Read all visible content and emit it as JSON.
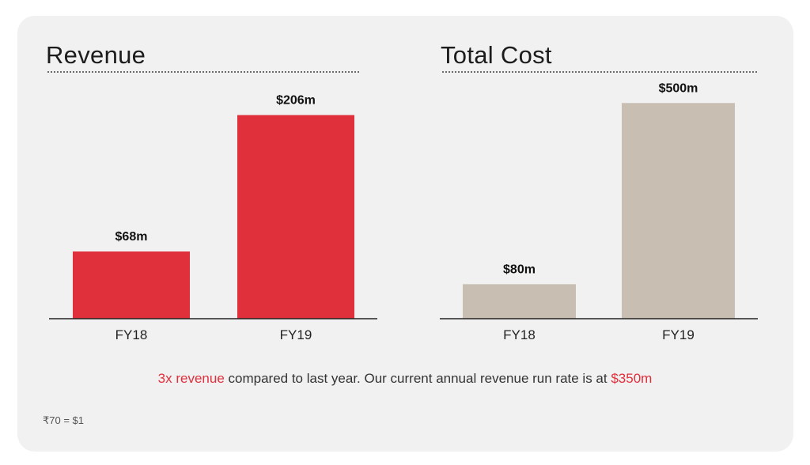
{
  "chart_data": [
    {
      "type": "bar",
      "title": "Revenue",
      "categories": [
        "FY18",
        "FY19"
      ],
      "values": [
        68,
        206
      ],
      "value_labels": [
        "$68m",
        "$206m"
      ],
      "unit": "$m",
      "color": "#e0303c",
      "ylim": [
        0,
        232
      ]
    },
    {
      "type": "bar",
      "title": "Total Cost",
      "categories": [
        "FY18",
        "FY19"
      ],
      "values": [
        80,
        500
      ],
      "value_labels": [
        "$80m",
        "$500m"
      ],
      "unit": "$m",
      "color": "#c8bfb2",
      "ylim": [
        0,
        550
      ]
    }
  ],
  "caption": {
    "highlight_1": "3x revenue",
    "middle": " compared to last year. Our current annual revenue run rate is at ",
    "highlight_2": "$350m"
  },
  "footnote": "₹70 = $1",
  "colors": {
    "accent": "#e0303c",
    "cost": "#c8bfb2",
    "background": "#f1f1f2"
  }
}
